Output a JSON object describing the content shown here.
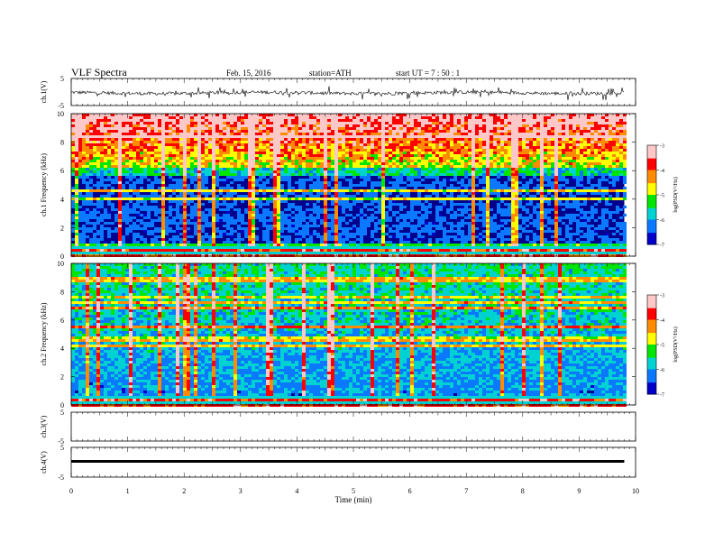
{
  "header": {
    "title": "VLF  Spectra",
    "date": "Feb. 15, 2016",
    "station": "station=ATH",
    "start": "start  UT  =   7  : 50 : 1"
  },
  "colors": {
    "colormap": [
      "#000000",
      "#0000c8",
      "#0a78ff",
      "#00d2d2",
      "#00e600",
      "#ffff00",
      "#ff8c00",
      "#ff0000",
      "#ffc8c8",
      "#ffffff"
    ],
    "trace": "#000000"
  },
  "chart_data": [
    {
      "type": "line",
      "id": "ch1",
      "ylabel": "ch.1(V)",
      "ylim": [
        -5,
        5
      ],
      "yticks": [
        "5",
        "-5"
      ],
      "series": [
        {
          "values": [
            0.2,
            -0.6,
            0.5,
            0.9,
            -0.8,
            0.4,
            0.1,
            -0.3,
            0.7,
            -0.2,
            0.3,
            -0.5,
            0.6,
            0.0,
            -0.4,
            0.8,
            -0.1,
            0.2,
            -0.7,
            0.4
          ]
        }
      ]
    },
    {
      "type": "heatmap",
      "id": "ch1spec",
      "ylabel": "ch.1  Frequency  (kHz)",
      "ylim": [
        0,
        10
      ],
      "yticks": [
        "0",
        "2",
        "4",
        "6",
        "8",
        "10"
      ],
      "colorbar": {
        "label": "log(PSD(V²/Hz)",
        "range": [
          -7,
          -3
        ],
        "ticks": [
          "-3",
          "-4",
          "-5",
          "-6",
          "-7"
        ]
      }
    },
    {
      "type": "heatmap",
      "id": "ch2spec",
      "ylabel": "ch.2  Frequency  (kHz)",
      "ylim": [
        0,
        10
      ],
      "yticks": [
        "0",
        "2",
        "4",
        "6",
        "8",
        "10"
      ],
      "colorbar": {
        "label": "log(PSD(V²/Hz)",
        "range": [
          -7,
          -3
        ],
        "ticks": [
          "-3",
          "-4",
          "-5",
          "-6",
          "-7"
        ]
      }
    },
    {
      "type": "line",
      "id": "ch3",
      "ylabel": "ch.3(V)",
      "ylim": [
        -5,
        5
      ],
      "yticks": [
        "5",
        "-5"
      ],
      "series": []
    },
    {
      "type": "line",
      "id": "ch4",
      "ylabel": "ch.4(V)",
      "ylim": [
        -5,
        5
      ],
      "yticks": [
        "5",
        "-5"
      ],
      "series": [
        {
          "values": [
            0,
            0
          ]
        }
      ]
    }
  ],
  "xaxis": {
    "label": "Time  (min)",
    "range": [
      0,
      10
    ],
    "ticks": [
      "0",
      "1",
      "2",
      "3",
      "4",
      "5",
      "6",
      "7",
      "8",
      "9",
      "10"
    ],
    "data_end": 9.8
  }
}
